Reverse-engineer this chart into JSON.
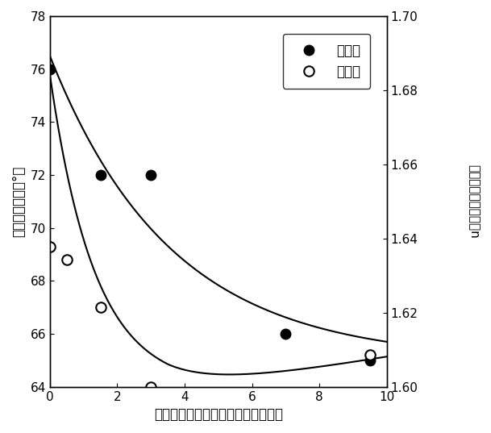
{
  "contact_angle_x": [
    0,
    1.5,
    3,
    7,
    9.5
  ],
  "contact_angle_y": [
    76,
    72,
    72,
    66,
    65
  ],
  "refractive_x": [
    0,
    0.5,
    1.5,
    3,
    9.5
  ],
  "refractive_y_left": [
    69.3,
    68.8,
    67.0,
    64.0,
    65.2
  ],
  "xlim": [
    0,
    10
  ],
  "ylim_left": [
    64,
    78
  ],
  "ylim_right": [
    1.6,
    1.7
  ],
  "xticks": [
    0,
    2,
    4,
    6,
    8,
    10
  ],
  "yticks_left": [
    64,
    66,
    68,
    70,
    72,
    74,
    76,
    78
  ],
  "yticks_right": [
    1.6,
    1.62,
    1.64,
    1.66,
    1.68,
    1.7
  ],
  "xlabel": "高分子膜の溶剤／樹脳成分の重量比",
  "ylabel_left": "純水の接触角（°）",
  "ylabel_right": "高分子膜の屈折率　n",
  "legend_contact": "接触角",
  "legend_refrac": "屈折率",
  "bg_color": "#ffffff"
}
